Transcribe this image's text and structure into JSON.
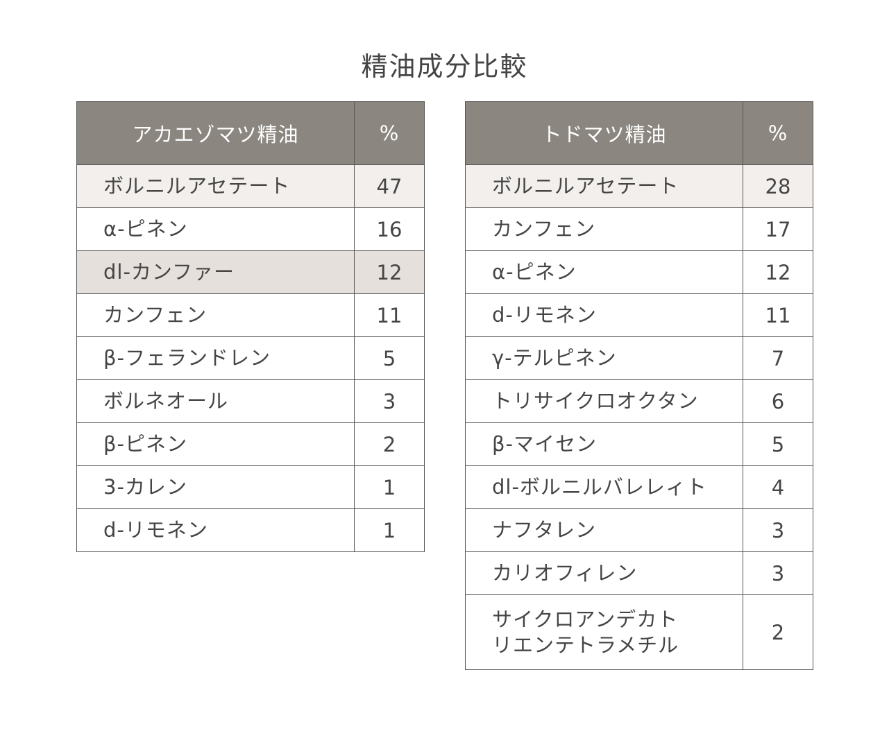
{
  "title": "精油成分比較",
  "akaezomatsu": {
    "header_name": "アカエゾマツ精油",
    "header_pct": "%",
    "rows": [
      {
        "name": "ボルニルアセテート",
        "pct": "47"
      },
      {
        "name": "α-ピネン",
        "pct": "16"
      },
      {
        "name": "dl-カンファー",
        "pct": "12"
      },
      {
        "name": "カンフェン",
        "pct": "11"
      },
      {
        "name": "β-フェランドレン",
        "pct": "5"
      },
      {
        "name": "ボルネオール",
        "pct": "3"
      },
      {
        "name": "β-ピネン",
        "pct": "2"
      },
      {
        "name": "3-カレン",
        "pct": "1"
      },
      {
        "name": "d-リモネン",
        "pct": "1"
      }
    ]
  },
  "todomatsu": {
    "header_name": "トドマツ精油",
    "header_pct": "%",
    "rows": [
      {
        "name": "ボルニルアセテート",
        "pct": "28"
      },
      {
        "name": "カンフェン",
        "pct": "17"
      },
      {
        "name": "α-ピネン",
        "pct": "12"
      },
      {
        "name": "d-リモネン",
        "pct": "11"
      },
      {
        "name": "γ-テルピネン",
        "pct": "7"
      },
      {
        "name": "トリサイクロオクタン",
        "pct": "6"
      },
      {
        "name": "β-マイセン",
        "pct": "5"
      },
      {
        "name": "dl-ボルニルバレレィト",
        "pct": "4"
      },
      {
        "name": "ナフタレン",
        "pct": "3"
      },
      {
        "name": "カリオフィレン",
        "pct": "3"
      },
      {
        "name": "サイクロアンデカトリエンテトラメチル",
        "name_line1": "サイクロアンデカト",
        "name_line2": "リエンテトラメチル",
        "pct": "2"
      }
    ]
  },
  "colors": {
    "header_bg": "#8b8780",
    "highlight_light": "#f2efec",
    "highlight_mid": "#e6e0dc",
    "border": "#555555"
  }
}
